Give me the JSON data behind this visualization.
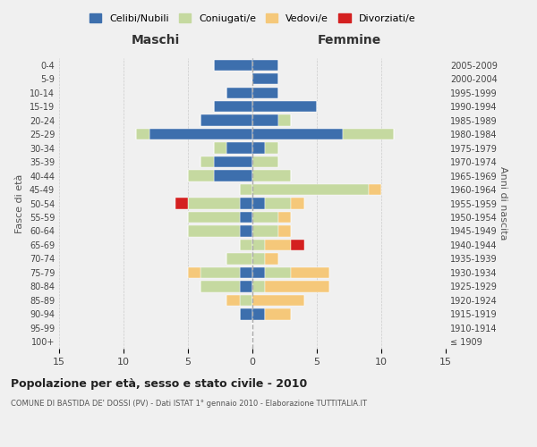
{
  "age_groups": [
    "100+",
    "95-99",
    "90-94",
    "85-89",
    "80-84",
    "75-79",
    "70-74",
    "65-69",
    "60-64",
    "55-59",
    "50-54",
    "45-49",
    "40-44",
    "35-39",
    "30-34",
    "25-29",
    "20-24",
    "15-19",
    "10-14",
    "5-9",
    "0-4"
  ],
  "birth_years": [
    "≤ 1909",
    "1910-1914",
    "1915-1919",
    "1920-1924",
    "1925-1929",
    "1930-1934",
    "1935-1939",
    "1940-1944",
    "1945-1949",
    "1950-1954",
    "1955-1959",
    "1960-1964",
    "1965-1969",
    "1970-1974",
    "1975-1979",
    "1980-1984",
    "1985-1989",
    "1990-1994",
    "1995-1999",
    "2000-2004",
    "2005-2009"
  ],
  "maschi": {
    "celibi": [
      0,
      0,
      1,
      0,
      1,
      1,
      0,
      0,
      1,
      1,
      1,
      0,
      3,
      3,
      2,
      8,
      4,
      3,
      2,
      0,
      3
    ],
    "coniugati": [
      0,
      0,
      0,
      1,
      3,
      3,
      2,
      1,
      4,
      4,
      4,
      1,
      2,
      1,
      1,
      1,
      0,
      0,
      0,
      0,
      0
    ],
    "vedovi": [
      0,
      0,
      0,
      1,
      0,
      1,
      0,
      0,
      0,
      0,
      0,
      0,
      0,
      0,
      0,
      0,
      0,
      0,
      0,
      0,
      0
    ],
    "divorziati": [
      0,
      0,
      0,
      0,
      0,
      0,
      0,
      0,
      0,
      0,
      1,
      0,
      0,
      0,
      0,
      0,
      0,
      0,
      0,
      0,
      0
    ]
  },
  "femmine": {
    "nubili": [
      0,
      0,
      1,
      0,
      0,
      1,
      0,
      0,
      0,
      0,
      1,
      0,
      0,
      0,
      1,
      7,
      2,
      5,
      2,
      2,
      2
    ],
    "coniugate": [
      0,
      0,
      0,
      0,
      1,
      2,
      1,
      1,
      2,
      2,
      2,
      9,
      3,
      2,
      1,
      4,
      1,
      0,
      0,
      0,
      0
    ],
    "vedove": [
      0,
      0,
      2,
      4,
      5,
      3,
      1,
      2,
      1,
      1,
      1,
      1,
      0,
      0,
      0,
      0,
      0,
      0,
      0,
      0,
      0
    ],
    "divorziate": [
      0,
      0,
      0,
      0,
      0,
      0,
      0,
      1,
      0,
      0,
      0,
      0,
      0,
      0,
      0,
      0,
      0,
      0,
      0,
      0,
      0
    ]
  },
  "colors": {
    "celibi_nubili": "#3d6fad",
    "coniugati": "#c5d9a0",
    "vedovi": "#f5c87a",
    "divorziati": "#d42020"
  },
  "xlim": 15,
  "title": "Popolazione per età, sesso e stato civile - 2010",
  "subtitle": "COMUNE DI BASTIDA DE' DOSSI (PV) - Dati ISTAT 1° gennaio 2010 - Elaborazione TUTTITALIA.IT",
  "ylabel_left": "Fasce di età",
  "ylabel_right": "Anni di nascita",
  "maschi_label": "Maschi",
  "femmine_label": "Femmine",
  "legend_labels": [
    "Celibi/Nubili",
    "Coniugati/e",
    "Vedovi/e",
    "Divorziati/e"
  ],
  "background_color": "#f0f0f0"
}
